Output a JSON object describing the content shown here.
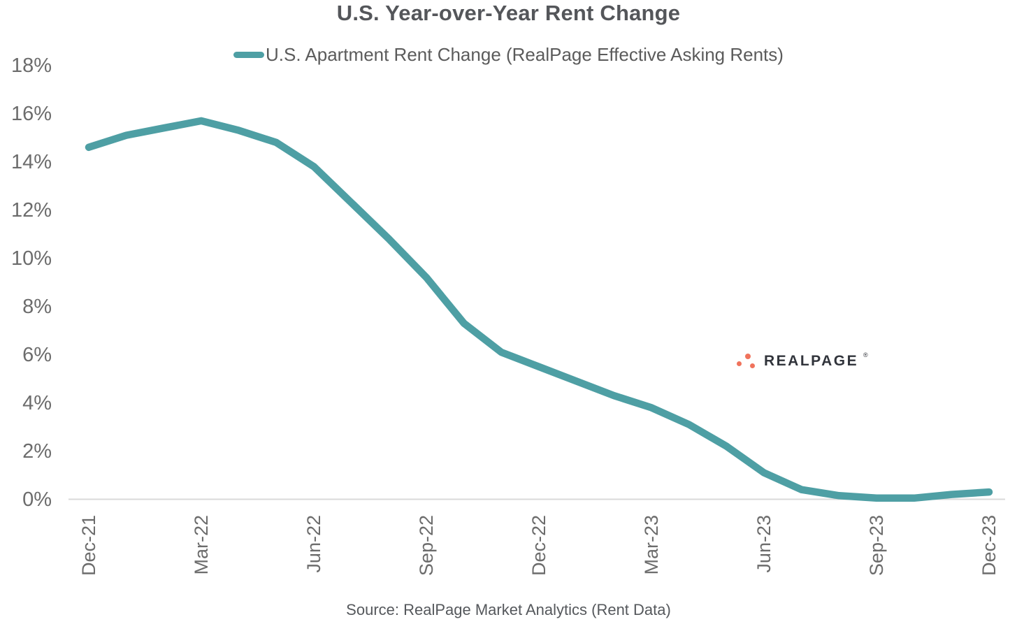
{
  "page": {
    "background": "#ffffff"
  },
  "header": {
    "title": "U.S. Year-over-Year Rent Change"
  },
  "legend": {
    "label": "U.S. Apartment Rent Change (RealPage Effective Asking Rents)",
    "swatch_color": "#4e9fa4"
  },
  "watermark": {
    "brand": "REALPAGE",
    "registered_mark": "®",
    "dot_color": "#f0735c",
    "text_color": "#31343b"
  },
  "footer": {
    "source": "Source: RealPage Market Analytics (Rent Data)"
  },
  "chart_data": {
    "type": "line",
    "title": "U.S. Year-over-Year Rent Change",
    "xlabel": "",
    "ylabel": "",
    "ylim": [
      0,
      18
    ],
    "y_tick_step": 2,
    "y_tick_labels": [
      "0%",
      "2%",
      "4%",
      "6%",
      "8%",
      "10%",
      "12%",
      "14%",
      "16%",
      "18%"
    ],
    "x": [
      "Dec-21",
      "Jan-22",
      "Feb-22",
      "Mar-22",
      "Apr-22",
      "May-22",
      "Jun-22",
      "Jul-22",
      "Aug-22",
      "Sep-22",
      "Oct-22",
      "Nov-22",
      "Dec-22",
      "Jan-23",
      "Feb-23",
      "Mar-23",
      "Apr-23",
      "May-23",
      "Jun-23",
      "Jul-23",
      "Aug-23",
      "Sep-23",
      "Oct-23",
      "Nov-23",
      "Dec-23"
    ],
    "x_tick_labels": [
      "Dec-21",
      "Mar-22",
      "Jun-22",
      "Sep-22",
      "Dec-22",
      "Mar-23",
      "Jun-23",
      "Sep-23",
      "Dec-23"
    ],
    "series": [
      {
        "name": "U.S. Apartment Rent Change (RealPage Effective Asking Rents)",
        "color": "#4e9fa4",
        "values": [
          14.6,
          15.1,
          15.4,
          15.7,
          15.3,
          14.8,
          13.8,
          12.3,
          10.8,
          9.2,
          7.3,
          6.1,
          5.5,
          4.9,
          4.3,
          3.8,
          3.1,
          2.2,
          1.1,
          0.4,
          0.15,
          0.05,
          0.05,
          0.2,
          0.3
        ]
      }
    ],
    "grid": "baseline-only",
    "baseline_color": "#dadada",
    "legend_position": "top-center"
  }
}
